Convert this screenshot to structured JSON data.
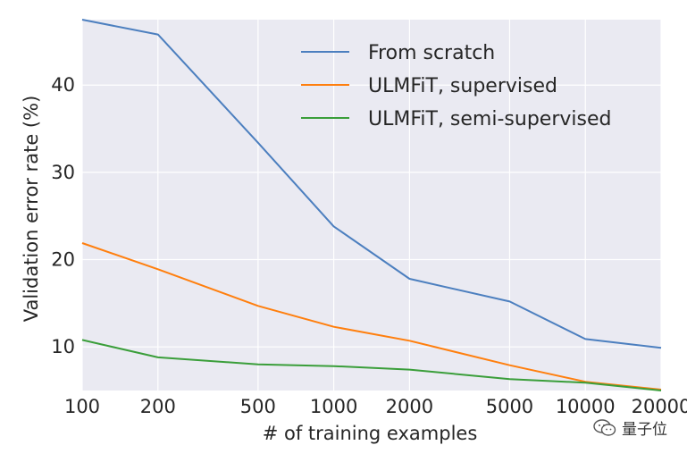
{
  "chart_data": {
    "type": "line",
    "title": "",
    "xlabel": "# of training examples",
    "ylabel": "Validation error rate (%)",
    "xscale": "log",
    "x": [
      100,
      200,
      500,
      1000,
      2000,
      5000,
      10000,
      20000
    ],
    "xticklabels": [
      "100",
      "200",
      "500",
      "1000",
      "2000",
      "5000",
      "10000",
      "20000"
    ],
    "yticks": [
      10,
      20,
      30,
      40
    ],
    "ylim": [
      5,
      47.5
    ],
    "grid": true,
    "legend_position": "top-right",
    "series": [
      {
        "name": "From scratch",
        "color": "#4c7fbf",
        "values": [
          47.5,
          45.8,
          33.4,
          23.8,
          17.8,
          15.2,
          10.9,
          9.9
        ]
      },
      {
        "name": "ULMFiT, supervised",
        "color": "#ff7f0e",
        "values": [
          21.9,
          18.9,
          14.7,
          12.3,
          10.7,
          7.9,
          6.0,
          5.1
        ]
      },
      {
        "name": "ULMFiT, semi-supervised",
        "color": "#3a9e3a",
        "values": [
          10.8,
          8.8,
          8.0,
          7.8,
          7.4,
          6.3,
          5.9,
          5.0
        ]
      }
    ]
  },
  "watermark": {
    "text": "量子位",
    "icon": "wechat-icon"
  }
}
